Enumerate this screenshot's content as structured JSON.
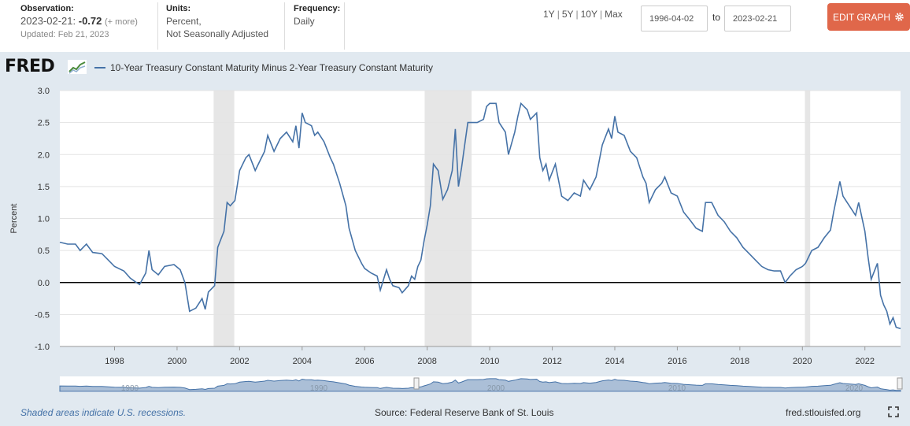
{
  "header": {
    "observation_label": "Observation:",
    "observation_date": "2023-02-21:",
    "observation_value": "-0.72",
    "observation_more": "(+ more)",
    "updated": "Updated: Feb 21, 2023",
    "units_label": "Units:",
    "units_line1": "Percent,",
    "units_line2": "Not Seasonally Adjusted",
    "frequency_label": "Frequency:",
    "frequency_value": "Daily",
    "ranges": [
      "1Y",
      "5Y",
      "10Y",
      "Max"
    ],
    "date_from": "1996-04-02",
    "to_label": "to",
    "date_to": "2023-02-21",
    "edit_button": "EDIT GRAPH"
  },
  "logo": {
    "text": "FRED"
  },
  "footer": {
    "recession_note": "Shaded areas indicate U.S. recessions.",
    "source": "Source: Federal Reserve Bank of St. Louis",
    "site": "fred.stlouisfed.org"
  },
  "colors": {
    "line": "#4572a7",
    "recession": "#e6e6e6",
    "edit_button": "#e0674a",
    "zero_line": "#000000"
  },
  "chart_data": {
    "type": "line",
    "title": "10-Year Treasury Constant Maturity Minus 2-Year Treasury Constant Maturity",
    "ylabel": "Percent",
    "xlim": [
      1996.25,
      2023.14
    ],
    "ylim": [
      -1.0,
      3.0
    ],
    "yticks": [
      -1.0,
      -0.5,
      0.0,
      0.5,
      1.0,
      1.5,
      2.0,
      2.5,
      3.0
    ],
    "ytick_labels": [
      "-1.0",
      "-0.5",
      "0.0",
      "0.5",
      "1.0",
      "1.5",
      "2.0",
      "2.5",
      "3.0"
    ],
    "xticks": [
      1998,
      2000,
      2002,
      2004,
      2006,
      2008,
      2010,
      2012,
      2014,
      2016,
      2018,
      2020,
      2022
    ],
    "xtick_labels": [
      "1998",
      "2000",
      "2002",
      "2004",
      "2006",
      "2008",
      "2010",
      "2012",
      "2014",
      "2016",
      "2018",
      "2020",
      "2022"
    ],
    "recessions": [
      [
        2001.17,
        2001.83
      ],
      [
        2007.92,
        2009.42
      ],
      [
        2020.08,
        2020.25
      ]
    ],
    "series": [
      {
        "values": [
          [
            1996.25,
            0.63
          ],
          [
            1996.5,
            0.6
          ],
          [
            1996.75,
            0.6
          ],
          [
            1996.9,
            0.5
          ],
          [
            1997.1,
            0.6
          ],
          [
            1997.3,
            0.47
          ],
          [
            1997.6,
            0.45
          ],
          [
            1997.8,
            0.35
          ],
          [
            1998.0,
            0.25
          ],
          [
            1998.3,
            0.18
          ],
          [
            1998.5,
            0.07
          ],
          [
            1998.7,
            0.0
          ],
          [
            1998.8,
            -0.03
          ],
          [
            1999.0,
            0.15
          ],
          [
            1999.1,
            0.5
          ],
          [
            1999.2,
            0.2
          ],
          [
            1999.4,
            0.12
          ],
          [
            1999.6,
            0.25
          ],
          [
            1999.9,
            0.28
          ],
          [
            2000.1,
            0.2
          ],
          [
            2000.25,
            0.0
          ],
          [
            2000.4,
            -0.45
          ],
          [
            2000.6,
            -0.4
          ],
          [
            2000.8,
            -0.25
          ],
          [
            2000.9,
            -0.42
          ],
          [
            2001.0,
            -0.15
          ],
          [
            2001.2,
            -0.05
          ],
          [
            2001.3,
            0.55
          ],
          [
            2001.5,
            0.8
          ],
          [
            2001.6,
            1.25
          ],
          [
            2001.7,
            1.2
          ],
          [
            2001.85,
            1.28
          ],
          [
            2002.0,
            1.75
          ],
          [
            2002.2,
            1.95
          ],
          [
            2002.3,
            2.0
          ],
          [
            2002.5,
            1.75
          ],
          [
            2002.6,
            1.85
          ],
          [
            2002.8,
            2.05
          ],
          [
            2002.9,
            2.3
          ],
          [
            2003.1,
            2.05
          ],
          [
            2003.3,
            2.25
          ],
          [
            2003.5,
            2.35
          ],
          [
            2003.7,
            2.2
          ],
          [
            2003.8,
            2.45
          ],
          [
            2003.9,
            2.1
          ],
          [
            2004.0,
            2.65
          ],
          [
            2004.1,
            2.5
          ],
          [
            2004.3,
            2.45
          ],
          [
            2004.4,
            2.3
          ],
          [
            2004.5,
            2.35
          ],
          [
            2004.7,
            2.2
          ],
          [
            2004.9,
            1.95
          ],
          [
            2005.0,
            1.85
          ],
          [
            2005.2,
            1.55
          ],
          [
            2005.4,
            1.2
          ],
          [
            2005.5,
            0.85
          ],
          [
            2005.7,
            0.5
          ],
          [
            2005.9,
            0.3
          ],
          [
            2006.0,
            0.22
          ],
          [
            2006.2,
            0.15
          ],
          [
            2006.4,
            0.1
          ],
          [
            2006.5,
            -0.12
          ],
          [
            2006.7,
            0.2
          ],
          [
            2006.8,
            0.05
          ],
          [
            2006.9,
            -0.05
          ],
          [
            2007.1,
            -0.08
          ],
          [
            2007.2,
            -0.16
          ],
          [
            2007.4,
            -0.05
          ],
          [
            2007.5,
            0.1
          ],
          [
            2007.6,
            0.05
          ],
          [
            2007.7,
            0.25
          ],
          [
            2007.8,
            0.35
          ],
          [
            2007.9,
            0.65
          ],
          [
            2008.0,
            0.9
          ],
          [
            2008.1,
            1.2
          ],
          [
            2008.2,
            1.85
          ],
          [
            2008.35,
            1.75
          ],
          [
            2008.5,
            1.3
          ],
          [
            2008.65,
            1.45
          ],
          [
            2008.8,
            1.75
          ],
          [
            2008.9,
            2.4
          ],
          [
            2009.0,
            1.5
          ],
          [
            2009.1,
            1.8
          ],
          [
            2009.2,
            2.15
          ],
          [
            2009.3,
            2.5
          ],
          [
            2009.5,
            2.5
          ],
          [
            2009.6,
            2.5
          ],
          [
            2009.8,
            2.55
          ],
          [
            2009.9,
            2.75
          ],
          [
            2010.0,
            2.8
          ],
          [
            2010.2,
            2.8
          ],
          [
            2010.3,
            2.5
          ],
          [
            2010.5,
            2.35
          ],
          [
            2010.6,
            2.0
          ],
          [
            2010.8,
            2.35
          ],
          [
            2010.9,
            2.6
          ],
          [
            2011.0,
            2.8
          ],
          [
            2011.2,
            2.7
          ],
          [
            2011.3,
            2.55
          ],
          [
            2011.5,
            2.65
          ],
          [
            2011.6,
            1.95
          ],
          [
            2011.7,
            1.75
          ],
          [
            2011.8,
            1.85
          ],
          [
            2011.9,
            1.6
          ],
          [
            2012.1,
            1.85
          ],
          [
            2012.3,
            1.35
          ],
          [
            2012.5,
            1.28
          ],
          [
            2012.7,
            1.4
          ],
          [
            2012.9,
            1.35
          ],
          [
            2013.0,
            1.6
          ],
          [
            2013.2,
            1.45
          ],
          [
            2013.4,
            1.65
          ],
          [
            2013.6,
            2.15
          ],
          [
            2013.8,
            2.4
          ],
          [
            2013.9,
            2.25
          ],
          [
            2014.0,
            2.6
          ],
          [
            2014.1,
            2.35
          ],
          [
            2014.3,
            2.3
          ],
          [
            2014.5,
            2.05
          ],
          [
            2014.7,
            1.95
          ],
          [
            2014.9,
            1.65
          ],
          [
            2015.0,
            1.55
          ],
          [
            2015.1,
            1.25
          ],
          [
            2015.3,
            1.45
          ],
          [
            2015.5,
            1.55
          ],
          [
            2015.6,
            1.65
          ],
          [
            2015.8,
            1.4
          ],
          [
            2016.0,
            1.35
          ],
          [
            2016.2,
            1.1
          ],
          [
            2016.4,
            0.98
          ],
          [
            2016.6,
            0.85
          ],
          [
            2016.8,
            0.8
          ],
          [
            2016.9,
            1.25
          ],
          [
            2017.1,
            1.25
          ],
          [
            2017.3,
            1.05
          ],
          [
            2017.5,
            0.95
          ],
          [
            2017.7,
            0.8
          ],
          [
            2017.9,
            0.7
          ],
          [
            2018.1,
            0.55
          ],
          [
            2018.3,
            0.45
          ],
          [
            2018.5,
            0.35
          ],
          [
            2018.7,
            0.25
          ],
          [
            2018.9,
            0.2
          ],
          [
            2019.1,
            0.18
          ],
          [
            2019.3,
            0.18
          ],
          [
            2019.45,
            0.0
          ],
          [
            2019.6,
            0.1
          ],
          [
            2019.8,
            0.2
          ],
          [
            2020.0,
            0.25
          ],
          [
            2020.1,
            0.3
          ],
          [
            2020.3,
            0.5
          ],
          [
            2020.5,
            0.55
          ],
          [
            2020.7,
            0.7
          ],
          [
            2020.9,
            0.82
          ],
          [
            2021.0,
            1.1
          ],
          [
            2021.2,
            1.58
          ],
          [
            2021.3,
            1.35
          ],
          [
            2021.5,
            1.2
          ],
          [
            2021.7,
            1.05
          ],
          [
            2021.8,
            1.25
          ],
          [
            2022.0,
            0.8
          ],
          [
            2022.1,
            0.4
          ],
          [
            2022.2,
            0.05
          ],
          [
            2022.4,
            0.3
          ],
          [
            2022.5,
            -0.2
          ],
          [
            2022.6,
            -0.35
          ],
          [
            2022.7,
            -0.45
          ],
          [
            2022.8,
            -0.65
          ],
          [
            2022.9,
            -0.55
          ],
          [
            2023.0,
            -0.7
          ],
          [
            2023.14,
            -0.72
          ]
        ]
      }
    ]
  },
  "navigator": {
    "tick_labels": [
      "1980",
      "1990",
      "2000",
      "2010",
      "2020"
    ]
  }
}
